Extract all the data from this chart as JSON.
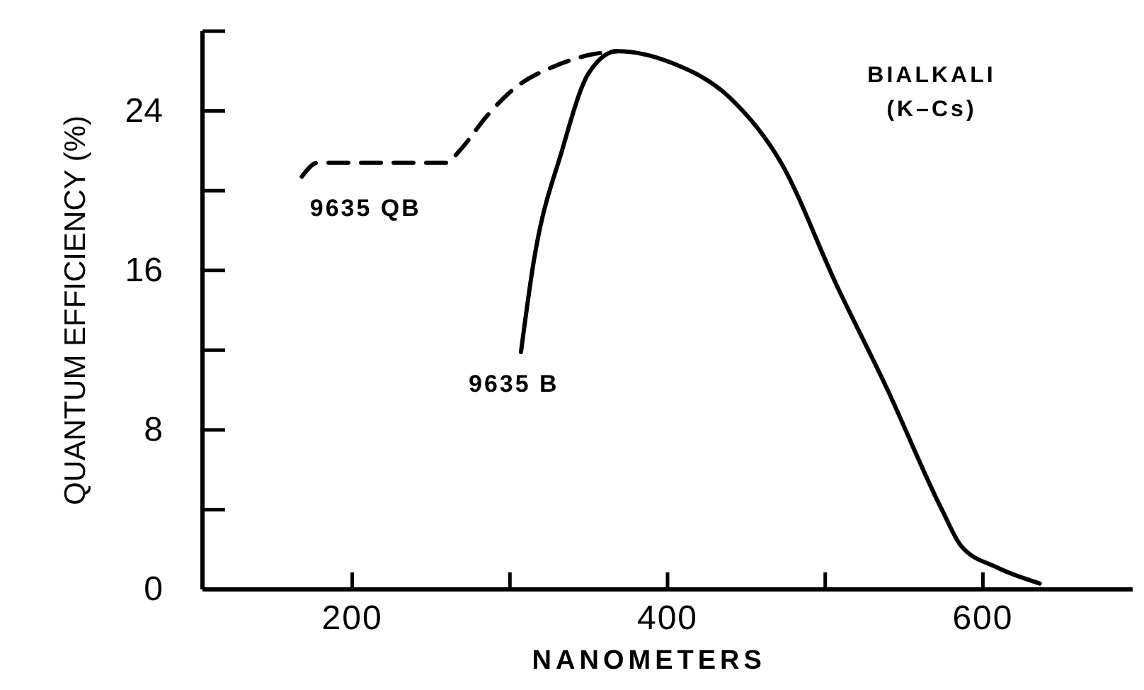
{
  "chart_data": {
    "type": "line",
    "xlabel": "NANOMETERS",
    "ylabel": "QUANTUM EFFICIENCY (%)",
    "annotations": [
      "BIALKALI",
      "(K–Cs)"
    ],
    "xlim": [
      105,
      695
    ],
    "xticks": [
      200,
      {
        "value": 300,
        "label": null
      },
      400,
      {
        "value": 500,
        "label": null
      },
      600
    ],
    "ylim": [
      0,
      28
    ],
    "yticks": [
      0,
      {
        "value": 4,
        "label": null
      },
      8,
      {
        "value": 12,
        "label": null
      },
      16,
      {
        "value": 20,
        "label": null
      },
      24,
      {
        "value": 28,
        "label": null
      }
    ],
    "grid": false,
    "marker": "none",
    "series": [
      {
        "name": "9635 QB",
        "color": "#000000",
        "line_style": "dashed",
        "x": [
          168,
          178,
          209,
          260,
          268,
          286,
          304,
          327,
          350,
          368
        ],
        "values": [
          20.7,
          21.4,
          21.4,
          21.4,
          22.0,
          23.8,
          25.2,
          26.2,
          26.8,
          27.0
        ]
      },
      {
        "name": "9635 B",
        "color": "#000000",
        "line_style": "solid",
        "x": [
          307,
          315,
          333,
          350,
          368,
          403,
          439,
          472,
          507,
          539,
          574,
          586,
          609,
          636
        ],
        "values": [
          11.9,
          16.4,
          22.0,
          25.9,
          27.0,
          26.4,
          24.7,
          21.4,
          15.3,
          10.1,
          4.0,
          2.2,
          1.1,
          0.3
        ]
      }
    ]
  }
}
